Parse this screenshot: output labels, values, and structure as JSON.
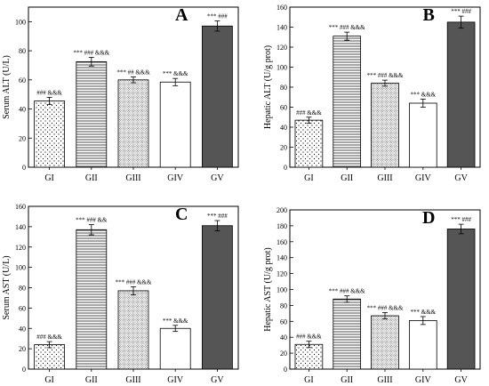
{
  "chart_data": [
    {
      "type": "bar",
      "panel_label": "A",
      "ylabel": "Serum ALT (U/L)",
      "categories": [
        "GI",
        "GII",
        "GIII",
        "GIV",
        "GV"
      ],
      "values": [
        45.5,
        72.5,
        60,
        58.5,
        97
      ],
      "errors": [
        2.5,
        3,
        2,
        2.5,
        3.5
      ],
      "annotations": [
        "### &&&",
        "*** ### &&&",
        "*** ## &&&",
        "*** &&&",
        "*** ###"
      ],
      "patterns": [
        "dots",
        "hlines",
        "fine-dots",
        "white",
        "dark"
      ],
      "ylim": [
        0,
        110
      ],
      "yticks": [
        0,
        20,
        40,
        60,
        80,
        100
      ]
    },
    {
      "type": "bar",
      "panel_label": "B",
      "ylabel": "Hepatic ALT (U/g prot)",
      "categories": [
        "GI",
        "GII",
        "GIII",
        "GIV",
        "GV"
      ],
      "values": [
        47,
        131,
        84,
        64,
        145
      ],
      "errors": [
        3,
        4,
        3,
        4,
        6
      ],
      "annotations": [
        "### &&&",
        "*** ### &&&",
        "*** ### &&&",
        "*** &&&",
        "*** ###"
      ],
      "patterns": [
        "dots",
        "hlines",
        "fine-dots",
        "white",
        "dark"
      ],
      "ylim": [
        0,
        160
      ],
      "yticks": [
        0,
        20,
        40,
        60,
        80,
        100,
        120,
        140,
        160
      ]
    },
    {
      "type": "bar",
      "panel_label": "C",
      "ylabel": "Serum AST (U/L)",
      "categories": [
        "GI",
        "GII",
        "GIII",
        "GIV",
        "GV"
      ],
      "values": [
        24,
        137,
        77,
        40,
        141
      ],
      "errors": [
        3,
        5,
        4,
        3,
        5
      ],
      "annotations": [
        "### &&&",
        "*** ### &&",
        "*** ### &&&",
        "*** &&&",
        "*** ###"
      ],
      "patterns": [
        "dots",
        "hlines",
        "fine-dots",
        "white",
        "dark"
      ],
      "ylim": [
        0,
        160
      ],
      "yticks": [
        0,
        20,
        40,
        60,
        80,
        100,
        120,
        140,
        160
      ]
    },
    {
      "type": "bar",
      "panel_label": "D",
      "ylabel": "Hepatic AST (U/g prot)",
      "categories": [
        "GI",
        "GII",
        "GIII",
        "GIV",
        "GV"
      ],
      "values": [
        31,
        88,
        67,
        61,
        176
      ],
      "errors": [
        4,
        4,
        4,
        5,
        6
      ],
      "annotations": [
        "### &&&",
        "*** ### &&&",
        "*** ### &&&",
        "*** &&&",
        "*** ###"
      ],
      "patterns": [
        "dots",
        "hlines",
        "fine-dots",
        "white",
        "dark"
      ],
      "ylim": [
        0,
        200
      ],
      "yticks": [
        0,
        20,
        40,
        60,
        80,
        100,
        120,
        140,
        160,
        180,
        200
      ]
    }
  ],
  "colors": {
    "dark_bar": "#555555",
    "outline": "#000000"
  }
}
